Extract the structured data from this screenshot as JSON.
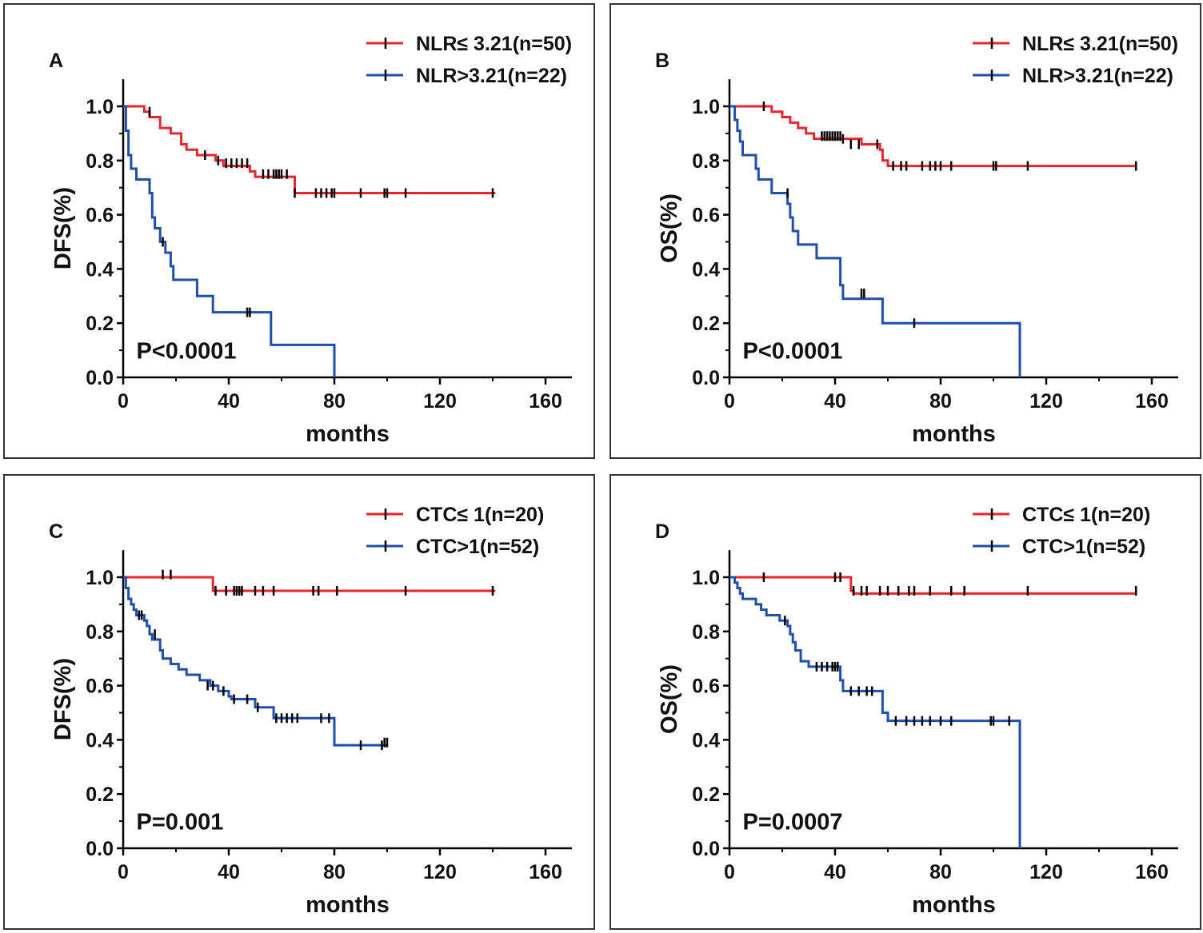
{
  "colors": {
    "red": "#e8262d",
    "blue": "#1f4fa8",
    "axis": "#000000",
    "censor": "#000000"
  },
  "chart_data": [
    {
      "type": "line",
      "panel_label": "A",
      "xlabel": "months",
      "ylabel": "DFS(%)",
      "xlim": [
        0,
        170
      ],
      "ylim": [
        0,
        1.1
      ],
      "xticks": [
        "0",
        "40",
        "80",
        "120",
        "160"
      ],
      "yticks": [
        "0.0",
        "0.2",
        "0.4",
        "0.6",
        "0.8",
        "1.0"
      ],
      "pvalue": "P<0.0001",
      "legend_position": "top-right",
      "series": [
        {
          "name": "NLR≤ 3.21(n=50)",
          "color": "#e8262d",
          "steps": [
            [
              0,
              1.0
            ],
            [
              8,
              0.98
            ],
            [
              10,
              0.96
            ],
            [
              14,
              0.92
            ],
            [
              18,
              0.9
            ],
            [
              22,
              0.86
            ],
            [
              24,
              0.84
            ],
            [
              28,
              0.82
            ],
            [
              35,
              0.8
            ],
            [
              38,
              0.78
            ],
            [
              48,
              0.76
            ],
            [
              50,
              0.74
            ],
            [
              65,
              0.68
            ],
            [
              141,
              0.68
            ]
          ],
          "censors": [
            [
              10,
              0.98
            ],
            [
              31,
              0.82
            ],
            [
              36,
              0.8
            ],
            [
              39,
              0.79
            ],
            [
              41,
              0.79
            ],
            [
              43,
              0.79
            ],
            [
              45,
              0.79
            ],
            [
              47,
              0.79
            ],
            [
              53,
              0.75
            ],
            [
              55,
              0.75
            ],
            [
              57,
              0.75
            ],
            [
              58,
              0.75
            ],
            [
              59,
              0.75
            ],
            [
              60,
              0.75
            ],
            [
              62,
              0.75
            ],
            [
              65,
              0.68
            ],
            [
              73,
              0.68
            ],
            [
              75,
              0.68
            ],
            [
              77,
              0.68
            ],
            [
              79,
              0.68
            ],
            [
              80,
              0.68
            ],
            [
              90,
              0.68
            ],
            [
              99,
              0.68
            ],
            [
              100,
              0.68
            ],
            [
              107,
              0.68
            ],
            [
              140,
              0.68
            ]
          ]
        },
        {
          "name": "NLR>3.21(n=22)",
          "color": "#1f4fa8",
          "steps": [
            [
              0,
              1.0
            ],
            [
              1,
              0.91
            ],
            [
              2,
              0.82
            ],
            [
              3,
              0.77
            ],
            [
              5,
              0.73
            ],
            [
              10,
              0.68
            ],
            [
              11,
              0.59
            ],
            [
              12,
              0.55
            ],
            [
              14,
              0.5
            ],
            [
              16,
              0.46
            ],
            [
              18,
              0.41
            ],
            [
              19,
              0.36
            ],
            [
              28,
              0.3
            ],
            [
              34,
              0.24
            ],
            [
              56,
              0.12
            ],
            [
              80,
              0.0
            ]
          ],
          "censors": [
            [
              15,
              0.5
            ],
            [
              47,
              0.24
            ],
            [
              48,
              0.24
            ]
          ]
        }
      ]
    },
    {
      "type": "line",
      "panel_label": "B",
      "xlabel": "months",
      "ylabel": "OS(%)",
      "xlim": [
        0,
        170
      ],
      "ylim": [
        0,
        1.1
      ],
      "xticks": [
        "0",
        "40",
        "80",
        "120",
        "160"
      ],
      "yticks": [
        "0.0",
        "0.2",
        "0.4",
        "0.6",
        "0.8",
        "1.0"
      ],
      "pvalue": "P<0.0001",
      "legend_position": "top-right",
      "series": [
        {
          "name": "NLR≤ 3.21(n=50)",
          "color": "#e8262d",
          "steps": [
            [
              0,
              1.0
            ],
            [
              16,
              0.98
            ],
            [
              20,
              0.96
            ],
            [
              23,
              0.94
            ],
            [
              26,
              0.92
            ],
            [
              29,
              0.9
            ],
            [
              32,
              0.88
            ],
            [
              50,
              0.86
            ],
            [
              57,
              0.84
            ],
            [
              58,
              0.8
            ],
            [
              60,
              0.78
            ],
            [
              154,
              0.78
            ]
          ],
          "censors": [
            [
              13,
              1.0
            ],
            [
              35,
              0.89
            ],
            [
              36,
              0.89
            ],
            [
              37,
              0.89
            ],
            [
              38,
              0.89
            ],
            [
              39,
              0.89
            ],
            [
              40,
              0.89
            ],
            [
              41,
              0.89
            ],
            [
              42,
              0.89
            ],
            [
              43,
              0.88
            ],
            [
              46,
              0.86
            ],
            [
              49,
              0.86
            ],
            [
              56,
              0.86
            ],
            [
              62,
              0.78
            ],
            [
              65,
              0.78
            ],
            [
              67,
              0.78
            ],
            [
              73,
              0.78
            ],
            [
              76,
              0.78
            ],
            [
              78,
              0.78
            ],
            [
              80,
              0.78
            ],
            [
              84,
              0.78
            ],
            [
              100,
              0.78
            ],
            [
              101,
              0.78
            ],
            [
              113,
              0.78
            ],
            [
              154,
              0.78
            ]
          ]
        },
        {
          "name": "NLR>3.21(n=22)",
          "color": "#1f4fa8",
          "steps": [
            [
              0,
              1.0
            ],
            [
              2,
              0.95
            ],
            [
              3,
              0.91
            ],
            [
              4,
              0.87
            ],
            [
              5,
              0.82
            ],
            [
              10,
              0.77
            ],
            [
              11,
              0.73
            ],
            [
              16,
              0.68
            ],
            [
              22,
              0.64
            ],
            [
              23,
              0.59
            ],
            [
              24,
              0.54
            ],
            [
              26,
              0.49
            ],
            [
              33,
              0.44
            ],
            [
              42,
              0.34
            ],
            [
              43,
              0.29
            ],
            [
              58,
              0.2
            ],
            [
              110,
              0.0
            ]
          ],
          "censors": [
            [
              22,
              0.68
            ],
            [
              50,
              0.31
            ],
            [
              51,
              0.31
            ],
            [
              70,
              0.2
            ]
          ]
        }
      ]
    },
    {
      "type": "line",
      "panel_label": "C",
      "xlabel": "months",
      "ylabel": "DFS(%)",
      "xlim": [
        0,
        170
      ],
      "ylim": [
        0,
        1.1
      ],
      "xticks": [
        "0",
        "40",
        "80",
        "120",
        "160"
      ],
      "yticks": [
        "0.0",
        "0.2",
        "0.4",
        "0.6",
        "0.8",
        "1.0"
      ],
      "pvalue": "P=0.001",
      "legend_position": "top-right",
      "series": [
        {
          "name": "CTC≤ 1(n=20)",
          "color": "#e8262d",
          "steps": [
            [
              0,
              1.0
            ],
            [
              34,
              0.95
            ],
            [
              141,
              0.95
            ]
          ],
          "censors": [
            [
              15,
              1.01
            ],
            [
              18,
              1.01
            ],
            [
              35,
              0.95
            ],
            [
              39,
              0.95
            ],
            [
              42,
              0.95
            ],
            [
              43,
              0.95
            ],
            [
              44,
              0.95
            ],
            [
              45,
              0.95
            ],
            [
              50,
              0.95
            ],
            [
              53,
              0.95
            ],
            [
              57,
              0.95
            ],
            [
              72,
              0.95
            ],
            [
              74,
              0.95
            ],
            [
              81,
              0.95
            ],
            [
              107,
              0.95
            ],
            [
              140,
              0.95
            ]
          ]
        },
        {
          "name": "CTC>1(n=52)",
          "color": "#1f4fa8",
          "steps": [
            [
              0,
              1.0
            ],
            [
              1,
              0.96
            ],
            [
              2,
              0.92
            ],
            [
              3,
              0.9
            ],
            [
              4,
              0.88
            ],
            [
              5,
              0.86
            ],
            [
              8,
              0.84
            ],
            [
              9,
              0.82
            ],
            [
              10,
              0.79
            ],
            [
              11,
              0.77
            ],
            [
              14,
              0.73
            ],
            [
              15,
              0.7
            ],
            [
              18,
              0.68
            ],
            [
              21,
              0.66
            ],
            [
              24,
              0.64
            ],
            [
              29,
              0.62
            ],
            [
              33,
              0.6
            ],
            [
              36,
              0.58
            ],
            [
              40,
              0.56
            ],
            [
              41,
              0.55
            ],
            [
              50,
              0.52
            ],
            [
              57,
              0.48
            ],
            [
              80,
              0.38
            ],
            [
              100,
              0.38
            ]
          ],
          "censors": [
            [
              6,
              0.86
            ],
            [
              7,
              0.86
            ],
            [
              12,
              0.79
            ],
            [
              32,
              0.6
            ],
            [
              34,
              0.6
            ],
            [
              38,
              0.58
            ],
            [
              42,
              0.55
            ],
            [
              47,
              0.55
            ],
            [
              51,
              0.52
            ],
            [
              58,
              0.48
            ],
            [
              60,
              0.48
            ],
            [
              62,
              0.48
            ],
            [
              64,
              0.48
            ],
            [
              66,
              0.48
            ],
            [
              75,
              0.48
            ],
            [
              78,
              0.48
            ],
            [
              90,
              0.38
            ],
            [
              98,
              0.38
            ],
            [
              99,
              0.39
            ],
            [
              100,
              0.39
            ]
          ]
        }
      ]
    },
    {
      "type": "line",
      "panel_label": "D",
      "xlabel": "months",
      "ylabel": "OS(%)",
      "xlim": [
        0,
        170
      ],
      "ylim": [
        0,
        1.1
      ],
      "xticks": [
        "0",
        "40",
        "80",
        "120",
        "160"
      ],
      "yticks": [
        "0.0",
        "0.2",
        "0.4",
        "0.6",
        "0.8",
        "1.0"
      ],
      "pvalue": "P=0.0007",
      "legend_position": "top-right",
      "series": [
        {
          "name": "CTC≤ 1(n=20)",
          "color": "#e8262d",
          "steps": [
            [
              0,
              1.0
            ],
            [
              46,
              0.95
            ],
            [
              47,
              0.94
            ],
            [
              154,
              0.94
            ]
          ],
          "censors": [
            [
              13,
              1.0
            ],
            [
              40,
              1.0
            ],
            [
              42,
              1.0
            ],
            [
              47,
              0.95
            ],
            [
              50,
              0.95
            ],
            [
              52,
              0.95
            ],
            [
              57,
              0.95
            ],
            [
              60,
              0.95
            ],
            [
              64,
              0.95
            ],
            [
              68,
              0.95
            ],
            [
              70,
              0.95
            ],
            [
              76,
              0.95
            ],
            [
              84,
              0.95
            ],
            [
              89,
              0.95
            ],
            [
              113,
              0.95
            ],
            [
              154,
              0.95
            ]
          ]
        },
        {
          "name": "CTC>1(n=52)",
          "color": "#1f4fa8",
          "steps": [
            [
              0,
              1.0
            ],
            [
              2,
              0.98
            ],
            [
              3,
              0.96
            ],
            [
              4,
              0.94
            ],
            [
              5,
              0.92
            ],
            [
              10,
              0.9
            ],
            [
              12,
              0.88
            ],
            [
              14,
              0.86
            ],
            [
              19,
              0.84
            ],
            [
              22,
              0.82
            ],
            [
              23,
              0.79
            ],
            [
              24,
              0.76
            ],
            [
              25,
              0.73
            ],
            [
              27,
              0.69
            ],
            [
              30,
              0.67
            ],
            [
              42,
              0.62
            ],
            [
              43,
              0.58
            ],
            [
              58,
              0.5
            ],
            [
              60,
              0.47
            ],
            [
              110,
              0.47
            ],
            [
              110,
              0.0
            ]
          ],
          "censors": [
            [
              21,
              0.84
            ],
            [
              33,
              0.67
            ],
            [
              35,
              0.67
            ],
            [
              37,
              0.67
            ],
            [
              39,
              0.67
            ],
            [
              40,
              0.67
            ],
            [
              41,
              0.67
            ],
            [
              46,
              0.58
            ],
            [
              49,
              0.58
            ],
            [
              52,
              0.58
            ],
            [
              54,
              0.58
            ],
            [
              63,
              0.47
            ],
            [
              67,
              0.47
            ],
            [
              70,
              0.47
            ],
            [
              73,
              0.47
            ],
            [
              76,
              0.47
            ],
            [
              80,
              0.47
            ],
            [
              84,
              0.47
            ],
            [
              99,
              0.47
            ],
            [
              100,
              0.47
            ],
            [
              106,
              0.47
            ]
          ]
        }
      ]
    }
  ]
}
